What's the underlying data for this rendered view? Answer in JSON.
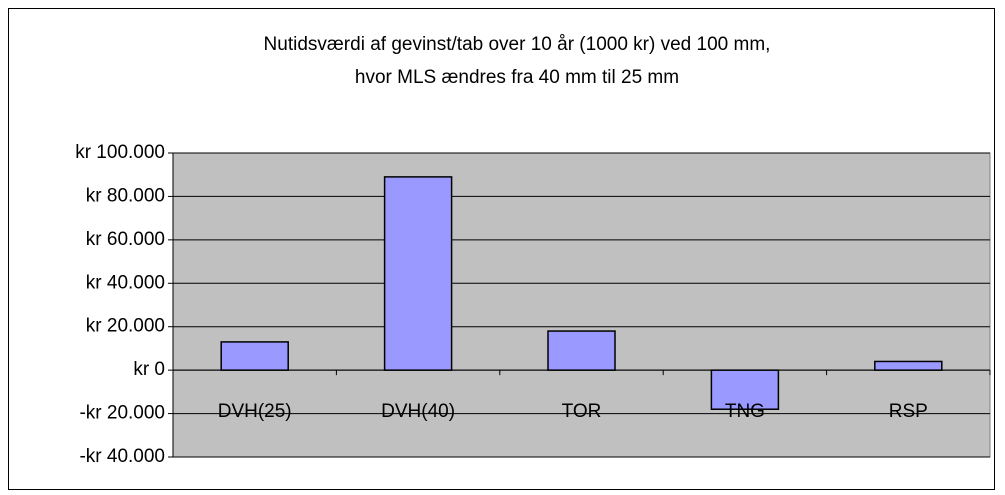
{
  "chart_data": {
    "type": "bar",
    "title": [
      "Nutidsværdi af gevinst/tab over 10 år (1000 kr) ved 100 mm,",
      "hvor MLS ændres fra 40 mm til 25 mm"
    ],
    "categories": [
      "DVH(25)",
      "DVH(40)",
      "TOR",
      "TNG",
      "RSP"
    ],
    "values": [
      13000,
      89000,
      18000,
      -18000,
      4000
    ],
    "color": "#9999ff",
    "ylim": [
      -40000,
      100000
    ],
    "yticks": [
      {
        "value": -40000,
        "label": "-kr 40.000"
      },
      {
        "value": -20000,
        "label": "-kr 20.000"
      },
      {
        "value": 0,
        "label": "kr 0"
      },
      {
        "value": 20000,
        "label": "kr 20.000"
      },
      {
        "value": 40000,
        "label": "kr 40.000"
      },
      {
        "value": 60000,
        "label": "kr 60.000"
      },
      {
        "value": 80000,
        "label": "kr 80.000"
      },
      {
        "value": 100000,
        "label": "kr 100.000"
      }
    ],
    "grid": true
  }
}
